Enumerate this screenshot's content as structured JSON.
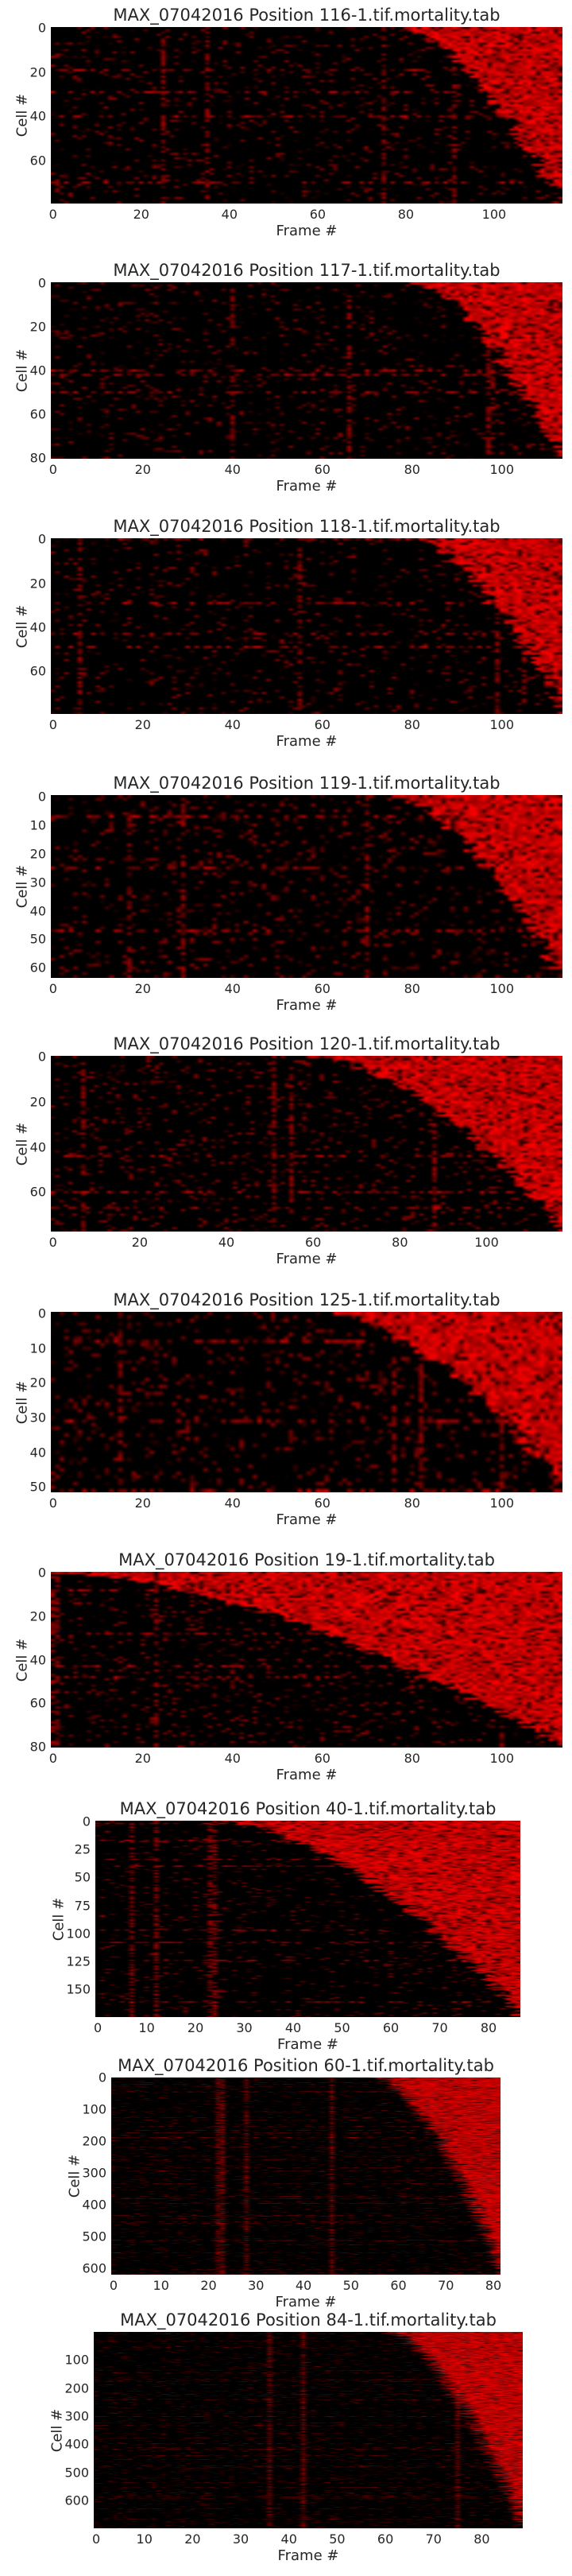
{
  "chart_data": [
    {
      "type": "heatmap",
      "title": "MAX_07042016 Position 116-1.tif.mortality.tab",
      "xlabel": "Frame #",
      "ylabel": "Cell #",
      "n_frames": 116,
      "n_cells": 80,
      "xticks": [
        0,
        20,
        40,
        60,
        80,
        100
      ],
      "yticks": [
        0,
        20,
        40,
        60
      ],
      "colormap": [
        "#000000",
        "#ff0000"
      ],
      "onset_range": [
        78,
        115
      ],
      "background_noise": 0.12
    },
    {
      "type": "heatmap",
      "title": "MAX_07042016 Position 117-1.tif.mortality.tab",
      "xlabel": "Frame #",
      "ylabel": "Cell #",
      "n_frames": 114,
      "n_cells": 81,
      "xticks": [
        0,
        20,
        40,
        60,
        80,
        100
      ],
      "yticks": [
        0,
        20,
        40,
        60,
        80
      ],
      "colormap": [
        "#000000",
        "#ff0000"
      ],
      "onset_range": [
        80,
        113
      ],
      "background_noise": 0.12
    },
    {
      "type": "heatmap",
      "title": "MAX_07042016 Position 118-1.tif.mortality.tab",
      "xlabel": "Frame #",
      "ylabel": "Cell #",
      "n_frames": 114,
      "n_cells": 80,
      "xticks": [
        0,
        20,
        40,
        60,
        80,
        100
      ],
      "yticks": [
        0,
        20,
        40,
        60
      ],
      "colormap": [
        "#000000",
        "#ff0000"
      ],
      "onset_range": [
        80,
        114
      ],
      "background_noise": 0.1
    },
    {
      "type": "heatmap",
      "title": "MAX_07042016 Position 119-1.tif.mortality.tab",
      "xlabel": "Frame #",
      "ylabel": "Cell #",
      "n_frames": 114,
      "n_cells": 64,
      "xticks": [
        0,
        20,
        40,
        60,
        80,
        100
      ],
      "yticks": [
        0,
        10,
        20,
        30,
        40,
        50,
        60
      ],
      "colormap": [
        "#000000",
        "#ff0000"
      ],
      "onset_range": [
        75,
        113
      ],
      "background_noise": 0.14
    },
    {
      "type": "heatmap",
      "title": "MAX_07042016 Position 120-1.tif.mortality.tab",
      "xlabel": "Frame #",
      "ylabel": "Cell #",
      "n_frames": 118,
      "n_cells": 78,
      "xticks": [
        0,
        20,
        40,
        60,
        80,
        100
      ],
      "yticks": [
        0,
        20,
        40,
        60
      ],
      "colormap": [
        "#000000",
        "#ff0000"
      ],
      "onset_range": [
        60,
        118
      ],
      "background_noise": 0.14
    },
    {
      "type": "heatmap",
      "title": "MAX_07042016 Position 125-1.tif.mortality.tab",
      "xlabel": "Frame #",
      "ylabel": "Cell #",
      "n_frames": 114,
      "n_cells": 52,
      "xticks": [
        0,
        20,
        40,
        60,
        80,
        100
      ],
      "yticks": [
        0,
        10,
        20,
        30,
        40,
        50
      ],
      "colormap": [
        "#000000",
        "#ff0000"
      ],
      "onset_range": [
        62,
        114
      ],
      "background_noise": 0.16
    },
    {
      "type": "heatmap",
      "title": "MAX_07042016 Position 19-1.tif.mortality.tab",
      "xlabel": "Frame #",
      "ylabel": "Cell #",
      "n_frames": 114,
      "n_cells": 81,
      "xticks": [
        0,
        20,
        40,
        60,
        80,
        100
      ],
      "yticks": [
        0,
        20,
        40,
        60,
        80
      ],
      "colormap": [
        "#000000",
        "#ff0000"
      ],
      "onset_range": [
        0,
        114
      ],
      "background_noise": 0.14
    },
    {
      "type": "heatmap",
      "title": "MAX_07042016 Position 40-1.tif.mortality.tab",
      "xlabel": "Frame #",
      "ylabel": "Cell #",
      "n_frames": 87,
      "n_cells": 175,
      "xticks": [
        0,
        10,
        20,
        30,
        40,
        50,
        60,
        70,
        80
      ],
      "yticks": [
        0,
        25,
        50,
        75,
        100,
        125,
        150
      ],
      "colormap": [
        "#000000",
        "#ff0000"
      ],
      "onset_range": [
        25,
        87
      ],
      "background_noise": 0.08
    },
    {
      "type": "heatmap",
      "title": "MAX_07042016 Position 60-1.tif.mortality.tab",
      "xlabel": "Frame #",
      "ylabel": "Cell #",
      "n_frames": 82,
      "n_cells": 620,
      "xticks": [
        0,
        10,
        20,
        30,
        40,
        50,
        60,
        70,
        80
      ],
      "yticks": [
        0,
        100,
        200,
        300,
        400,
        500,
        600
      ],
      "colormap": [
        "#000000",
        "#ff0000"
      ],
      "onset_range": [
        55,
        82
      ],
      "background_noise": 0.07
    },
    {
      "type": "heatmap",
      "title": "MAX_07042016 Position 84-1.tif.mortality.tab",
      "xlabel": "Frame #",
      "ylabel": "Cell #",
      "n_frames": 89,
      "n_cells": 700,
      "xticks": [
        0,
        10,
        20,
        30,
        40,
        50,
        60,
        70,
        80
      ],
      "yticks": [
        100,
        200,
        300,
        400,
        500,
        600
      ],
      "colormap": [
        "#000000",
        "#ff0000"
      ],
      "onset_range": [
        60,
        89
      ],
      "background_noise": 0.07
    }
  ]
}
